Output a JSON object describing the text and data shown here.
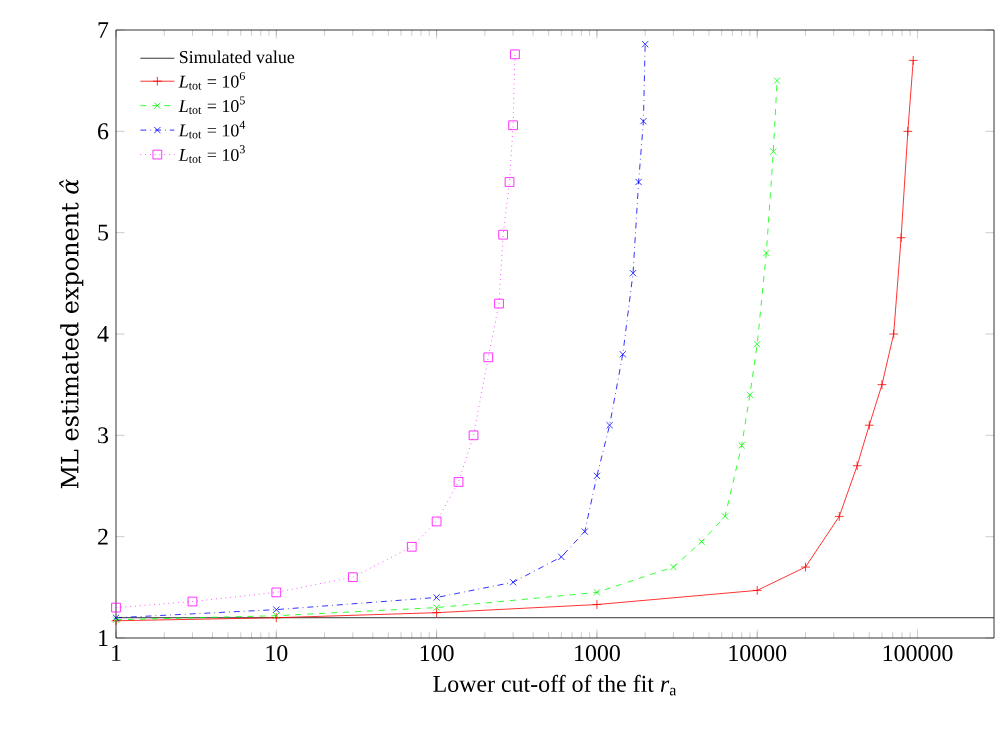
{
  "chart_data": {
    "type": "line",
    "xlabel": "Lower cut-off of the fit *r*$_{a}$",
    "ylabel": "ML estimated exponent *α̂*",
    "log": "x",
    "xlim": [
      1,
      300000
    ],
    "ylim": [
      1,
      7
    ],
    "xticks": [
      1,
      10,
      100,
      1000,
      10000,
      100000
    ],
    "yticks": [
      1,
      2,
      3,
      4,
      5,
      6,
      7
    ],
    "legend": "top left",
    "grid": false,
    "series": [
      {
        "name": "Simulated value",
        "color": "#000000",
        "marker": "none",
        "line_style": "solid",
        "x": [
          1,
          300000
        ],
        "values": [
          1.2,
          1.2
        ]
      },
      {
        "name": "*L*$_{tot}$ = 10$^{6}$",
        "color": "#ff0000",
        "marker": "plus",
        "line_style": "solid",
        "x": [
          1,
          10,
          100,
          1000,
          10000,
          20000,
          32500,
          42000,
          50000,
          60000,
          71000,
          79000,
          87000,
          94000
        ],
        "values": [
          1.17,
          1.2,
          1.25,
          1.33,
          1.47,
          1.7,
          2.2,
          2.7,
          3.1,
          3.5,
          4.0,
          4.95,
          6.0,
          6.7
        ]
      },
      {
        "name": "*L*$_{tot}$ = 10$^{5}$",
        "color": "#00ff00",
        "marker": "cross",
        "line_style": "dashed",
        "x": [
          1,
          10,
          100,
          1000,
          3000,
          4500,
          6300,
          8000,
          9000,
          10000,
          11400,
          12600,
          13300
        ],
        "values": [
          1.18,
          1.22,
          1.3,
          1.45,
          1.7,
          1.95,
          2.2,
          2.9,
          3.4,
          3.9,
          4.8,
          5.8,
          6.5
        ]
      },
      {
        "name": "*L*$_{tot}$ = 10$^{4}$",
        "color": "#0000ff",
        "marker": "cross",
        "line_style": "dashdotted",
        "x": [
          1,
          10,
          100,
          300,
          600,
          840,
          1000,
          1200,
          1450,
          1680,
          1820,
          1950,
          2000
        ],
        "values": [
          1.2,
          1.28,
          1.4,
          1.55,
          1.8,
          2.05,
          2.6,
          3.1,
          3.8,
          4.6,
          5.5,
          6.1,
          6.86
        ]
      },
      {
        "name": "*L*$_{tot}$ = 10$^{3}$",
        "color": "#ff00ff",
        "marker": "square",
        "line_style": "dotted",
        "x": [
          1,
          3,
          10,
          30,
          70,
          100,
          137,
          170,
          210,
          245,
          260,
          285,
          300,
          308
        ],
        "values": [
          1.3,
          1.36,
          1.45,
          1.6,
          1.9,
          2.15,
          2.54,
          3.0,
          3.77,
          4.3,
          4.98,
          5.5,
          6.06,
          6.76
        ]
      }
    ]
  }
}
